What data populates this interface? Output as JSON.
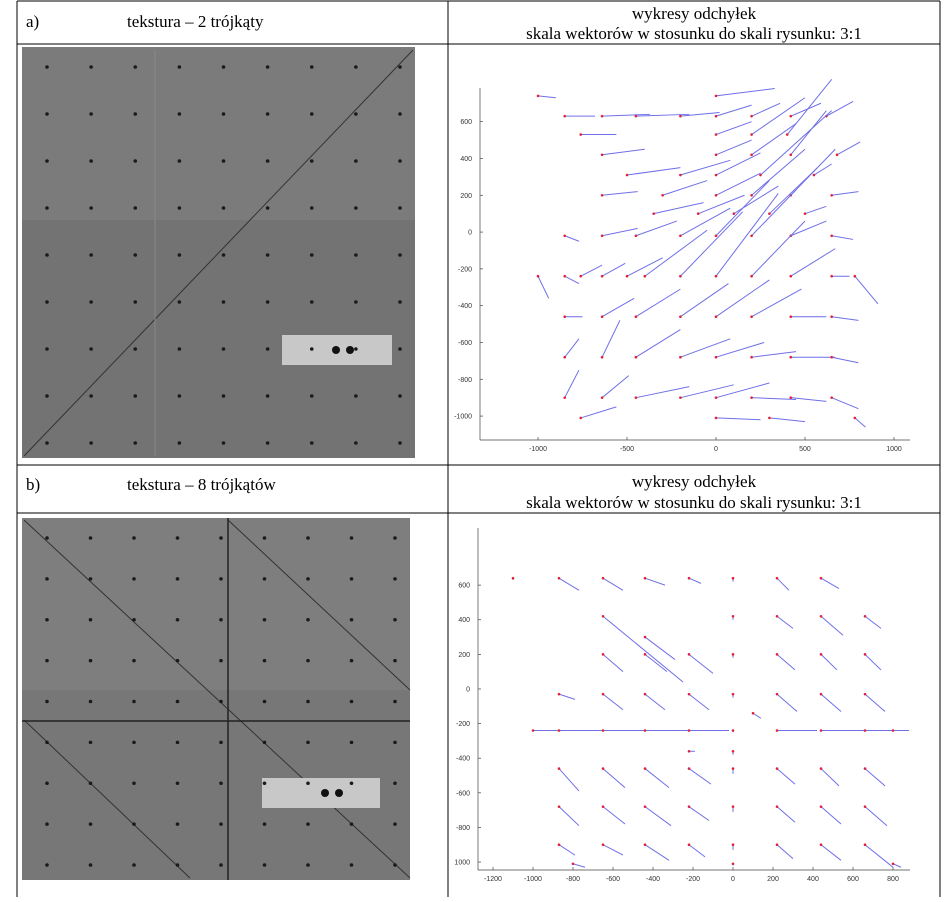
{
  "table": {
    "rows": [
      {
        "label": "a)",
        "title": "tekstura – 2 trójkąty",
        "right": [
          "wykresy odchyłek",
          "skala wektorów w stosunku do skali rysunku: 3:1"
        ]
      },
      {
        "label": "b)",
        "title": "tekstura – 8 trójkątów",
        "right": [
          "wykresy odchyłek",
          "skala wektorów w stosunku do skali rysunku: 3:1"
        ]
      }
    ]
  },
  "plots": [
    {
      "xlim": [
        -1326,
        1090
      ],
      "ylim": [
        -1130,
        783
      ],
      "xticks": [
        -1000,
        -500,
        0,
        500,
        1000
      ],
      "yticks": [
        600,
        400,
        200,
        0,
        -200,
        -400,
        -600,
        -800,
        -1000
      ],
      "vectors": [
        [
          -1000,
          740,
          100,
          -10
        ],
        [
          0,
          740,
          330,
          40
        ],
        [
          -850,
          630,
          170,
          0
        ],
        [
          -640,
          630,
          270,
          10
        ],
        [
          -450,
          630,
          300,
          10
        ],
        [
          -200,
          630,
          220,
          20
        ],
        [
          0,
          630,
          200,
          60
        ],
        [
          200,
          630,
          160,
          70
        ],
        [
          420,
          630,
          170,
          70
        ],
        [
          620,
          630,
          150,
          80
        ],
        [
          -760,
          530,
          200,
          0
        ],
        [
          0,
          530,
          200,
          70
        ],
        [
          200,
          530,
          300,
          200
        ],
        [
          400,
          530,
          250,
          300
        ],
        [
          -640,
          420,
          240,
          30
        ],
        [
          0,
          420,
          200,
          80
        ],
        [
          200,
          420,
          250,
          170
        ],
        [
          420,
          420,
          200,
          240
        ],
        [
          680,
          420,
          130,
          70
        ],
        [
          -500,
          310,
          300,
          40
        ],
        [
          -200,
          310,
          280,
          80
        ],
        [
          0,
          310,
          250,
          120
        ],
        [
          250,
          310,
          400,
          350
        ],
        [
          550,
          310,
          100,
          60
        ],
        [
          -640,
          200,
          200,
          20
        ],
        [
          -300,
          200,
          250,
          80
        ],
        [
          0,
          200,
          250,
          120
        ],
        [
          200,
          200,
          300,
          250
        ],
        [
          420,
          200,
          250,
          250
        ],
        [
          650,
          200,
          150,
          20
        ],
        [
          -350,
          100,
          280,
          60
        ],
        [
          -100,
          100,
          260,
          100
        ],
        [
          100,
          100,
          250,
          150
        ],
        [
          300,
          100,
          270,
          250
        ],
        [
          500,
          100,
          120,
          40
        ],
        [
          -850,
          -20,
          80,
          -30
        ],
        [
          -640,
          -20,
          200,
          40
        ],
        [
          -450,
          -20,
          230,
          80
        ],
        [
          -200,
          -20,
          280,
          150
        ],
        [
          0,
          -20,
          300,
          300
        ],
        [
          200,
          -20,
          250,
          250
        ],
        [
          420,
          -20,
          200,
          80
        ],
        [
          650,
          -20,
          120,
          -20
        ],
        [
          -1000,
          -240,
          60,
          -120
        ],
        [
          -850,
          -240,
          80,
          -40
        ],
        [
          -760,
          -240,
          120,
          60
        ],
        [
          -640,
          -240,
          130,
          70
        ],
        [
          -500,
          -240,
          200,
          100
        ],
        [
          -400,
          -240,
          350,
          250
        ],
        [
          -200,
          -240,
          350,
          350
        ],
        [
          0,
          -240,
          350,
          450
        ],
        [
          200,
          -240,
          300,
          300
        ],
        [
          420,
          -240,
          250,
          150
        ],
        [
          650,
          -240,
          100,
          0
        ],
        [
          780,
          -240,
          130,
          -150
        ],
        [
          -850,
          -460,
          100,
          0
        ],
        [
          -640,
          -460,
          180,
          100
        ],
        [
          -450,
          -460,
          250,
          150
        ],
        [
          -200,
          -460,
          270,
          180
        ],
        [
          0,
          -460,
          300,
          200
        ],
        [
          200,
          -460,
          280,
          150
        ],
        [
          420,
          -460,
          200,
          0
        ],
        [
          650,
          -460,
          150,
          -20
        ],
        [
          -850,
          -680,
          80,
          100
        ],
        [
          -640,
          -680,
          100,
          200
        ],
        [
          -450,
          -680,
          250,
          150
        ],
        [
          -200,
          -680,
          280,
          100
        ],
        [
          0,
          -680,
          270,
          80
        ],
        [
          200,
          -680,
          250,
          30
        ],
        [
          420,
          -680,
          250,
          0
        ],
        [
          650,
          -680,
          150,
          -30
        ],
        [
          -850,
          -900,
          80,
          150
        ],
        [
          -640,
          -900,
          150,
          120
        ],
        [
          -450,
          -900,
          300,
          60
        ],
        [
          -200,
          -900,
          300,
          70
        ],
        [
          0,
          -900,
          300,
          80
        ],
        [
          200,
          -900,
          250,
          -10
        ],
        [
          420,
          -900,
          200,
          -20
        ],
        [
          650,
          -900,
          150,
          -60
        ],
        [
          -760,
          -1010,
          200,
          60
        ],
        [
          0,
          -1010,
          250,
          -10
        ],
        [
          300,
          -1010,
          200,
          -20
        ],
        [
          780,
          -1010,
          60,
          -50
        ]
      ]
    },
    {
      "xlim": [
        -1275,
        885
      ],
      "ylim": [
        -1046,
        930
      ],
      "xticks": [
        -1200,
        -1000,
        -800,
        -600,
        -400,
        -200,
        0,
        200,
        400,
        600,
        800
      ],
      "yticks": [
        600,
        400,
        200,
        0,
        -200,
        -400,
        -600,
        -800,
        {
          "value": -1000,
          "label": "1000"
        }
      ],
      "vectors": [
        [
          -1100,
          640,
          0,
          -10
        ],
        [
          -870,
          640,
          100,
          -70
        ],
        [
          -650,
          640,
          100,
          -70
        ],
        [
          -440,
          640,
          100,
          -40
        ],
        [
          -220,
          640,
          60,
          -30
        ],
        [
          0,
          640,
          0,
          -20
        ],
        [
          220,
          640,
          60,
          -70
        ],
        [
          440,
          640,
          90,
          -60
        ],
        [
          -650,
          420,
          400,
          -380
        ],
        [
          -440,
          300,
          150,
          -130
        ],
        [
          0,
          420,
          0,
          -20
        ],
        [
          220,
          420,
          80,
          -70
        ],
        [
          440,
          420,
          110,
          -110
        ],
        [
          660,
          420,
          80,
          -70
        ],
        [
          -650,
          200,
          100,
          -100
        ],
        [
          -440,
          200,
          110,
          -100
        ],
        [
          -220,
          200,
          120,
          -110
        ],
        [
          0,
          200,
          0,
          -20
        ],
        [
          220,
          200,
          90,
          -90
        ],
        [
          440,
          200,
          80,
          -90
        ],
        [
          660,
          200,
          80,
          -90
        ],
        [
          -870,
          -30,
          80,
          -30
        ],
        [
          -650,
          -30,
          100,
          -90
        ],
        [
          -440,
          -30,
          100,
          -90
        ],
        [
          -220,
          -30,
          100,
          -90
        ],
        [
          0,
          -30,
          0,
          -20
        ],
        [
          220,
          -30,
          100,
          -100
        ],
        [
          440,
          -30,
          100,
          -100
        ],
        [
          660,
          -30,
          100,
          -100
        ],
        [
          -1000,
          -240,
          200,
          0
        ],
        [
          -870,
          -240,
          220,
          0
        ],
        [
          -650,
          -240,
          210,
          0
        ],
        [
          -440,
          -240,
          220,
          0
        ],
        [
          -220,
          -240,
          200,
          0
        ],
        [
          0,
          -240,
          0,
          -10
        ],
        [
          220,
          -240,
          200,
          0
        ],
        [
          440,
          -240,
          220,
          0
        ],
        [
          660,
          -240,
          220,
          0
        ],
        [
          800,
          -240,
          60,
          0
        ],
        [
          -220,
          -360,
          30,
          0
        ],
        [
          0,
          -360,
          0,
          -20
        ],
        [
          100,
          -140,
          40,
          -30
        ],
        [
          -870,
          -460,
          100,
          -130
        ],
        [
          -650,
          -460,
          110,
          -110
        ],
        [
          -440,
          -460,
          120,
          -110
        ],
        [
          -220,
          -460,
          110,
          -90
        ],
        [
          0,
          -460,
          0,
          -30
        ],
        [
          220,
          -460,
          90,
          -90
        ],
        [
          440,
          -460,
          90,
          -100
        ],
        [
          660,
          -460,
          100,
          -100
        ],
        [
          -870,
          -680,
          100,
          -110
        ],
        [
          -650,
          -680,
          110,
          -100
        ],
        [
          -440,
          -680,
          130,
          -110
        ],
        [
          -220,
          -680,
          100,
          -80
        ],
        [
          0,
          -680,
          0,
          -30
        ],
        [
          220,
          -680,
          90,
          -90
        ],
        [
          440,
          -680,
          100,
          -100
        ],
        [
          660,
          -680,
          110,
          -110
        ],
        [
          -870,
          -900,
          80,
          -60
        ],
        [
          -650,
          -900,
          100,
          -60
        ],
        [
          -440,
          -900,
          120,
          -90
        ],
        [
          -220,
          -900,
          80,
          -70
        ],
        [
          0,
          -900,
          0,
          -30
        ],
        [
          220,
          -900,
          80,
          -80
        ],
        [
          440,
          -900,
          100,
          -90
        ],
        [
          660,
          -900,
          140,
          -130
        ],
        [
          -800,
          -1010,
          60,
          -20
        ],
        [
          0,
          -1010,
          0,
          -10
        ],
        [
          800,
          -1010,
          40,
          -20
        ]
      ]
    }
  ]
}
